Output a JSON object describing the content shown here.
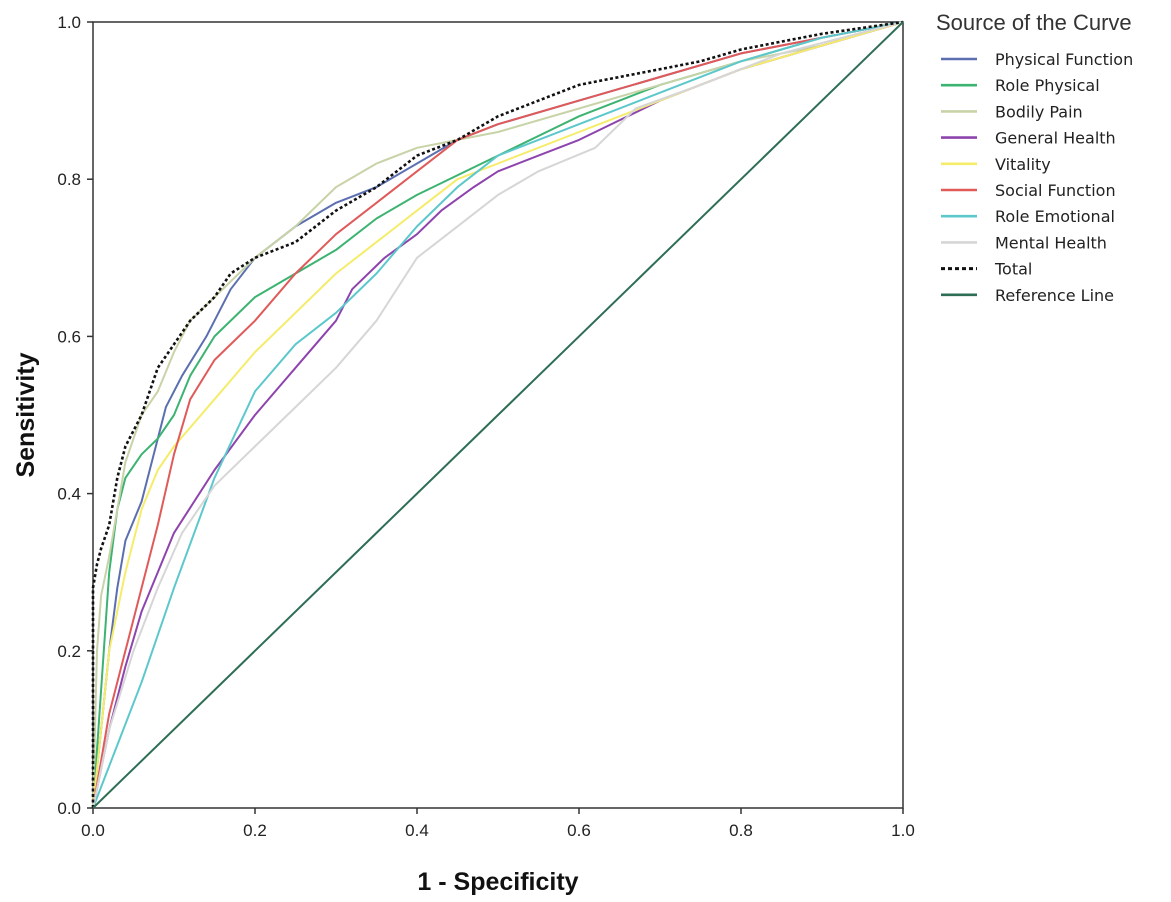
{
  "chart_data": {
    "type": "line",
    "title": "",
    "xlabel": "1 - Specificity",
    "ylabel": "Sensitivity",
    "xlim": [
      0,
      1
    ],
    "ylim": [
      0,
      1
    ],
    "xticks": [
      "0.0",
      "0.2",
      "0.4",
      "0.6",
      "0.8",
      "1.0"
    ],
    "yticks": [
      "0.0",
      "0.2",
      "0.4",
      "0.6",
      "0.8",
      "1.0"
    ],
    "grid": false,
    "legend": {
      "title": "Source of the Curve",
      "position": "right"
    },
    "series": [
      {
        "name": "Physical Function",
        "color": "#5b6fb0",
        "dash": "solid",
        "points": [
          [
            0,
            0
          ],
          [
            0.01,
            0.1
          ],
          [
            0.02,
            0.2
          ],
          [
            0.03,
            0.28
          ],
          [
            0.04,
            0.34
          ],
          [
            0.06,
            0.39
          ],
          [
            0.08,
            0.47
          ],
          [
            0.09,
            0.51
          ],
          [
            0.11,
            0.55
          ],
          [
            0.14,
            0.6
          ],
          [
            0.17,
            0.66
          ],
          [
            0.2,
            0.7
          ],
          [
            0.25,
            0.74
          ],
          [
            0.3,
            0.77
          ],
          [
            0.35,
            0.79
          ],
          [
            0.4,
            0.82
          ],
          [
            0.45,
            0.85
          ],
          [
            0.5,
            0.87
          ],
          [
            0.6,
            0.9
          ],
          [
            0.7,
            0.93
          ],
          [
            0.8,
            0.96
          ],
          [
            0.9,
            0.98
          ],
          [
            1,
            1
          ]
        ]
      },
      {
        "name": "Role Physical",
        "color": "#3cb371",
        "dash": "solid",
        "points": [
          [
            0,
            0
          ],
          [
            0.01,
            0.15
          ],
          [
            0.02,
            0.3
          ],
          [
            0.03,
            0.38
          ],
          [
            0.04,
            0.42
          ],
          [
            0.06,
            0.45
          ],
          [
            0.08,
            0.47
          ],
          [
            0.1,
            0.5
          ],
          [
            0.12,
            0.55
          ],
          [
            0.15,
            0.6
          ],
          [
            0.2,
            0.65
          ],
          [
            0.25,
            0.68
          ],
          [
            0.3,
            0.71
          ],
          [
            0.35,
            0.75
          ],
          [
            0.4,
            0.78
          ],
          [
            0.5,
            0.83
          ],
          [
            0.6,
            0.88
          ],
          [
            0.7,
            0.92
          ],
          [
            0.8,
            0.95
          ],
          [
            0.9,
            0.98
          ],
          [
            1,
            1
          ]
        ]
      },
      {
        "name": "Bodily Pain",
        "color": "#c8d3a8",
        "dash": "solid",
        "points": [
          [
            0,
            0
          ],
          [
            0.005,
            0.2
          ],
          [
            0.01,
            0.27
          ],
          [
            0.02,
            0.32
          ],
          [
            0.03,
            0.38
          ],
          [
            0.04,
            0.44
          ],
          [
            0.06,
            0.5
          ],
          [
            0.08,
            0.53
          ],
          [
            0.1,
            0.58
          ],
          [
            0.12,
            0.62
          ],
          [
            0.15,
            0.65
          ],
          [
            0.2,
            0.7
          ],
          [
            0.25,
            0.74
          ],
          [
            0.3,
            0.79
          ],
          [
            0.35,
            0.82
          ],
          [
            0.4,
            0.84
          ],
          [
            0.45,
            0.85
          ],
          [
            0.5,
            0.86
          ],
          [
            0.6,
            0.89
          ],
          [
            0.7,
            0.92
          ],
          [
            0.8,
            0.95
          ],
          [
            0.9,
            0.97
          ],
          [
            1,
            1
          ]
        ]
      },
      {
        "name": "General Health",
        "color": "#8e44ad",
        "dash": "solid",
        "points": [
          [
            0,
            0
          ],
          [
            0.02,
            0.1
          ],
          [
            0.04,
            0.18
          ],
          [
            0.06,
            0.25
          ],
          [
            0.08,
            0.3
          ],
          [
            0.1,
            0.35
          ],
          [
            0.15,
            0.43
          ],
          [
            0.2,
            0.5
          ],
          [
            0.25,
            0.56
          ],
          [
            0.3,
            0.62
          ],
          [
            0.32,
            0.66
          ],
          [
            0.36,
            0.7
          ],
          [
            0.4,
            0.73
          ],
          [
            0.43,
            0.76
          ],
          [
            0.47,
            0.79
          ],
          [
            0.5,
            0.81
          ],
          [
            0.55,
            0.83
          ],
          [
            0.6,
            0.85
          ],
          [
            0.7,
            0.9
          ],
          [
            0.8,
            0.94
          ],
          [
            0.9,
            0.97
          ],
          [
            1,
            1
          ]
        ]
      },
      {
        "name": "Vitality",
        "color": "#f5ec6a",
        "dash": "solid",
        "points": [
          [
            0,
            0
          ],
          [
            0.01,
            0.1
          ],
          [
            0.02,
            0.2
          ],
          [
            0.04,
            0.3
          ],
          [
            0.06,
            0.38
          ],
          [
            0.08,
            0.43
          ],
          [
            0.1,
            0.46
          ],
          [
            0.15,
            0.52
          ],
          [
            0.2,
            0.58
          ],
          [
            0.25,
            0.63
          ],
          [
            0.3,
            0.68
          ],
          [
            0.35,
            0.72
          ],
          [
            0.4,
            0.76
          ],
          [
            0.45,
            0.8
          ],
          [
            0.5,
            0.82
          ],
          [
            0.6,
            0.86
          ],
          [
            0.7,
            0.9
          ],
          [
            0.8,
            0.94
          ],
          [
            0.9,
            0.97
          ],
          [
            1,
            1
          ]
        ]
      },
      {
        "name": "Social Function",
        "color": "#e05a5a",
        "dash": "solid",
        "points": [
          [
            0,
            0
          ],
          [
            0.02,
            0.12
          ],
          [
            0.04,
            0.2
          ],
          [
            0.06,
            0.28
          ],
          [
            0.08,
            0.36
          ],
          [
            0.1,
            0.45
          ],
          [
            0.12,
            0.52
          ],
          [
            0.15,
            0.57
          ],
          [
            0.2,
            0.62
          ],
          [
            0.25,
            0.68
          ],
          [
            0.3,
            0.73
          ],
          [
            0.35,
            0.77
          ],
          [
            0.4,
            0.81
          ],
          [
            0.45,
            0.85
          ],
          [
            0.5,
            0.87
          ],
          [
            0.6,
            0.9
          ],
          [
            0.7,
            0.93
          ],
          [
            0.8,
            0.96
          ],
          [
            0.9,
            0.98
          ],
          [
            1,
            1
          ]
        ]
      },
      {
        "name": "Role Emotional",
        "color": "#5cc8cc",
        "dash": "solid",
        "points": [
          [
            0,
            0
          ],
          [
            0.03,
            0.08
          ],
          [
            0.06,
            0.16
          ],
          [
            0.1,
            0.28
          ],
          [
            0.15,
            0.42
          ],
          [
            0.2,
            0.53
          ],
          [
            0.25,
            0.59
          ],
          [
            0.3,
            0.63
          ],
          [
            0.35,
            0.68
          ],
          [
            0.4,
            0.74
          ],
          [
            0.45,
            0.79
          ],
          [
            0.5,
            0.83
          ],
          [
            0.6,
            0.87
          ],
          [
            0.7,
            0.91
          ],
          [
            0.8,
            0.95
          ],
          [
            0.9,
            0.98
          ],
          [
            1,
            1
          ]
        ]
      },
      {
        "name": "Mental Health",
        "color": "#d6d6d6",
        "dash": "solid",
        "points": [
          [
            0,
            0
          ],
          [
            0.02,
            0.1
          ],
          [
            0.05,
            0.2
          ],
          [
            0.08,
            0.28
          ],
          [
            0.11,
            0.35
          ],
          [
            0.15,
            0.41
          ],
          [
            0.2,
            0.46
          ],
          [
            0.25,
            0.51
          ],
          [
            0.3,
            0.56
          ],
          [
            0.35,
            0.62
          ],
          [
            0.4,
            0.7
          ],
          [
            0.45,
            0.74
          ],
          [
            0.5,
            0.78
          ],
          [
            0.55,
            0.81
          ],
          [
            0.62,
            0.84
          ],
          [
            0.67,
            0.89
          ],
          [
            0.75,
            0.92
          ],
          [
            0.85,
            0.96
          ],
          [
            1,
            1
          ]
        ]
      },
      {
        "name": "Total",
        "color": "#111111",
        "dash": "dotted",
        "points": [
          [
            0,
            0
          ],
          [
            0,
            0.28
          ],
          [
            0.005,
            0.31
          ],
          [
            0.01,
            0.33
          ],
          [
            0.02,
            0.36
          ],
          [
            0.03,
            0.42
          ],
          [
            0.04,
            0.46
          ],
          [
            0.06,
            0.5
          ],
          [
            0.08,
            0.56
          ],
          [
            0.1,
            0.59
          ],
          [
            0.12,
            0.62
          ],
          [
            0.15,
            0.65
          ],
          [
            0.17,
            0.68
          ],
          [
            0.2,
            0.7
          ],
          [
            0.25,
            0.72
          ],
          [
            0.3,
            0.76
          ],
          [
            0.35,
            0.79
          ],
          [
            0.4,
            0.83
          ],
          [
            0.45,
            0.85
          ],
          [
            0.5,
            0.88
          ],
          [
            0.55,
            0.9
          ],
          [
            0.6,
            0.92
          ],
          [
            0.65,
            0.93
          ],
          [
            0.7,
            0.94
          ],
          [
            0.75,
            0.95
          ],
          [
            0.8,
            0.965
          ],
          [
            0.85,
            0.975
          ],
          [
            0.9,
            0.985
          ],
          [
            1,
            1
          ]
        ]
      },
      {
        "name": "Reference Line",
        "color": "#2e6e55",
        "dash": "solid",
        "points": [
          [
            0,
            0
          ],
          [
            1,
            1
          ]
        ]
      }
    ]
  }
}
